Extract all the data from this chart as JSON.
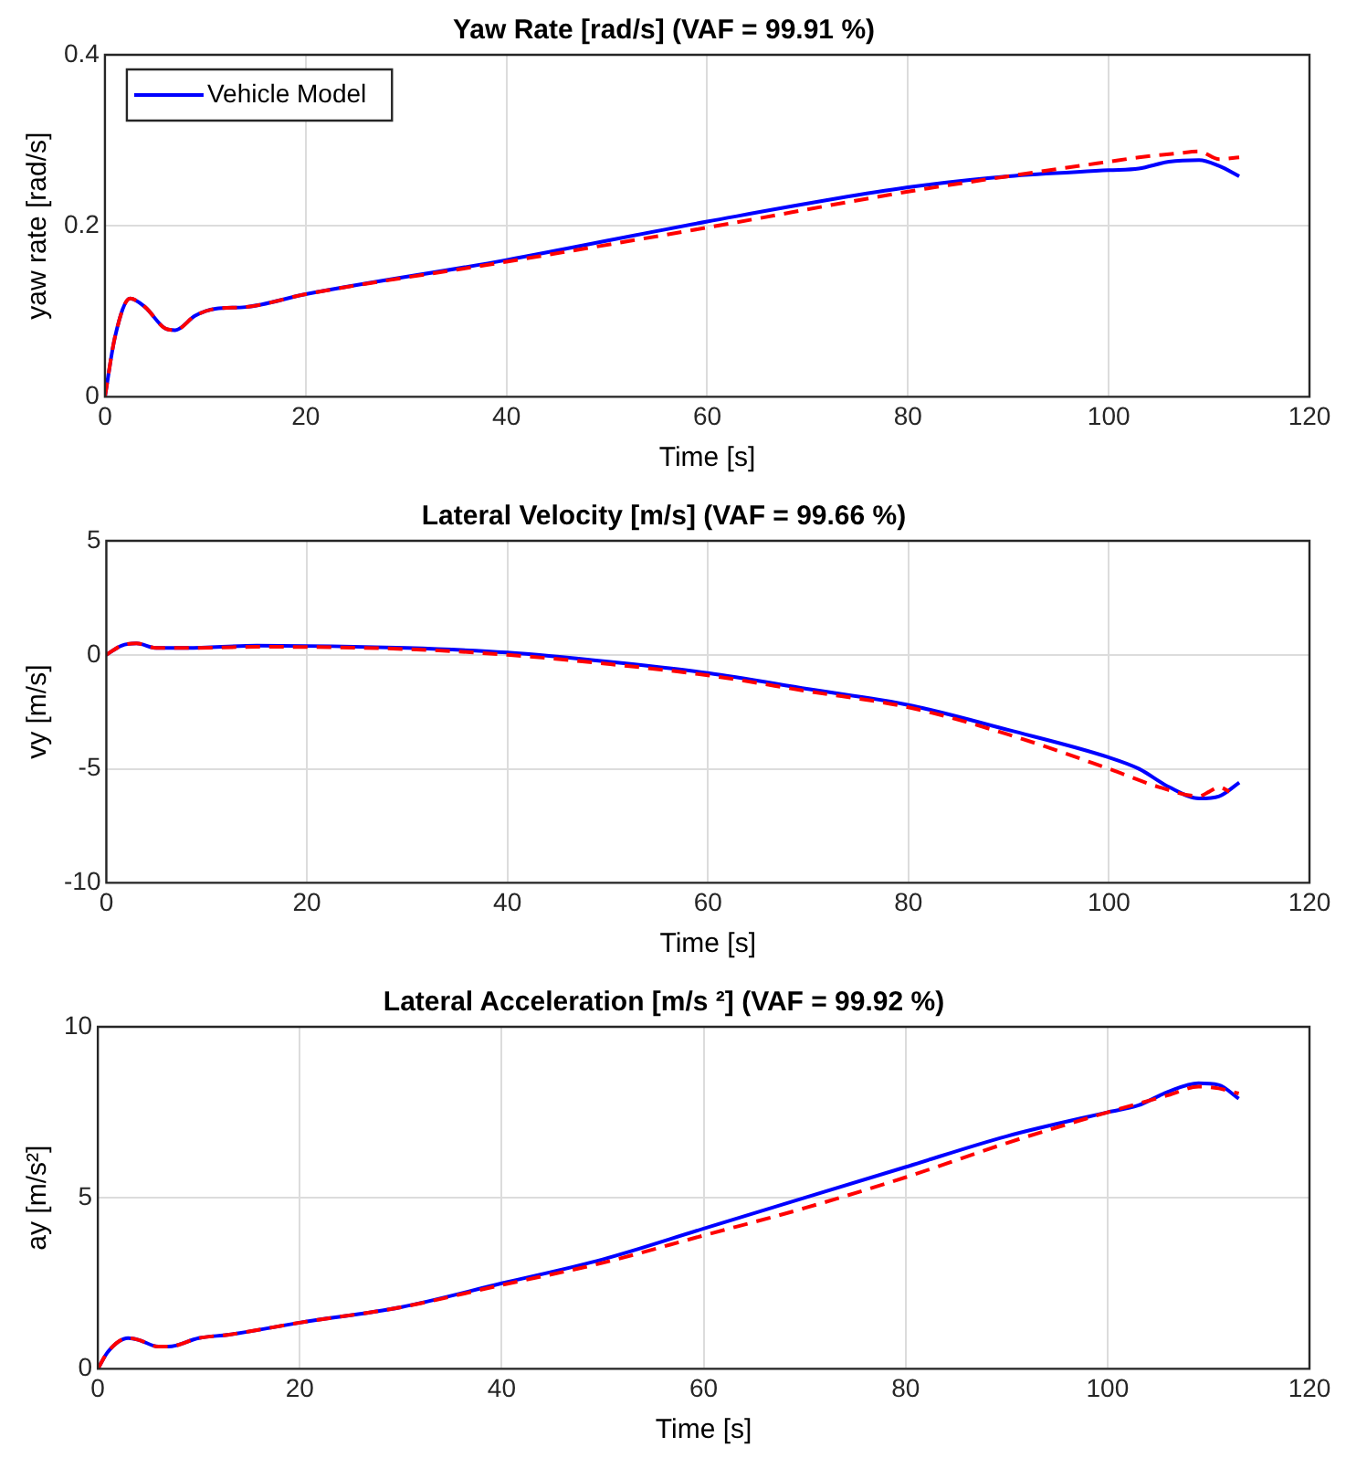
{
  "chart_data": [
    {
      "type": "line",
      "title": "Yaw Rate [rad/s] (VAF = 99.91 %)",
      "xlabel": "Time [s]",
      "ylabel": "yaw rate [rad/s]",
      "xlim": [
        0,
        120
      ],
      "xticks": [
        0,
        20,
        40,
        60,
        80,
        100,
        120
      ],
      "ylim": [
        0,
        0.4
      ],
      "yticks": [
        0,
        0.2,
        0.4
      ],
      "grid": true,
      "legend": "top left",
      "series": [
        {
          "name": "Vehicle Model",
          "color": "#0000ff",
          "line_style": "solid",
          "x": [
            0,
            1,
            2.5,
            4,
            6,
            7,
            9,
            11,
            14,
            20,
            40,
            60,
            80,
            90,
            100,
            103,
            106,
            109,
            111,
            113
          ],
          "values": [
            0,
            0.07,
            0.115,
            0.105,
            0.08,
            0.078,
            0.095,
            0.103,
            0.105,
            0.12,
            0.16,
            0.205,
            0.245,
            0.258,
            0.265,
            0.267,
            0.275,
            0.277,
            0.27,
            0.258
          ]
        },
        {
          "color": "#ff0000",
          "line_style": "dashed",
          "x": [
            0,
            1,
            2.5,
            4,
            6,
            7,
            9,
            11,
            14,
            20,
            40,
            60,
            80,
            90,
            100,
            103,
            107,
            109,
            111,
            113
          ],
          "values": [
            0,
            0.07,
            0.115,
            0.105,
            0.08,
            0.078,
            0.095,
            0.103,
            0.105,
            0.12,
            0.158,
            0.198,
            0.24,
            0.258,
            0.275,
            0.28,
            0.285,
            0.287,
            0.278,
            0.28
          ]
        }
      ]
    },
    {
      "type": "line",
      "title": "Lateral Velocity [m/s] (VAF = 99.66 %)",
      "xlabel": "Time [s]",
      "ylabel": "vy [m/s]",
      "xlim": [
        0,
        120
      ],
      "xticks": [
        0,
        20,
        40,
        60,
        80,
        100,
        120
      ],
      "ylim": [
        -10,
        5
      ],
      "yticks": [
        -10,
        -5,
        0,
        5
      ],
      "grid": true,
      "series": [
        {
          "color": "#0000ff",
          "line_style": "solid",
          "x": [
            0,
            1.5,
            3,
            5,
            8,
            15,
            30,
            40,
            50,
            60,
            70,
            80,
            90,
            100,
            103,
            106,
            109,
            111,
            113
          ],
          "values": [
            0,
            0.4,
            0.5,
            0.3,
            0.3,
            0.4,
            0.3,
            0.1,
            -0.3,
            -0.8,
            -1.5,
            -2.2,
            -3.3,
            -4.5,
            -5,
            -5.8,
            -6.3,
            -6.2,
            -5.6
          ]
        },
        {
          "color": "#ff0000",
          "line_style": "dashed",
          "x": [
            0,
            1.5,
            3,
            5,
            8,
            15,
            30,
            40,
            50,
            60,
            70,
            80,
            90,
            100,
            105,
            109,
            110,
            111,
            112
          ],
          "values": [
            0,
            0.4,
            0.5,
            0.3,
            0.3,
            0.35,
            0.25,
            0,
            -0.4,
            -0.9,
            -1.6,
            -2.3,
            -3.5,
            -5,
            -5.8,
            -6.2,
            -6,
            -5.8,
            -6
          ]
        }
      ]
    },
    {
      "type": "line",
      "title": "Lateral Acceleration [m/s ²] (VAF = 99.92 %)",
      "xlabel": "Time [s]",
      "ylabel": "ay [m/s²]",
      "xlim": [
        0,
        120
      ],
      "xticks": [
        0,
        20,
        40,
        60,
        80,
        100,
        120
      ],
      "ylim": [
        0,
        10
      ],
      "yticks": [
        0,
        5,
        10
      ],
      "grid": true,
      "series": [
        {
          "color": "#0000ff",
          "line_style": "solid",
          "x": [
            0,
            1,
            3,
            4,
            6,
            7,
            10,
            13,
            20,
            30,
            40,
            50,
            60,
            70,
            80,
            90,
            100,
            103,
            106,
            109,
            111,
            113
          ],
          "values": [
            0,
            0.5,
            0.9,
            0.85,
            0.65,
            0.65,
            0.9,
            1,
            1.35,
            1.8,
            2.5,
            3.2,
            4.1,
            5,
            5.9,
            6.8,
            7.5,
            7.7,
            8.1,
            8.35,
            8.3,
            7.9
          ]
        },
        {
          "color": "#ff0000",
          "line_style": "dashed",
          "x": [
            0,
            1,
            3,
            4,
            6,
            7,
            10,
            13,
            20,
            30,
            40,
            50,
            60,
            70,
            80,
            90,
            100,
            106,
            109,
            111,
            113
          ],
          "values": [
            0,
            0.5,
            0.9,
            0.85,
            0.65,
            0.65,
            0.9,
            1,
            1.35,
            1.8,
            2.45,
            3.1,
            3.9,
            4.7,
            5.6,
            6.6,
            7.5,
            8,
            8.25,
            8.2,
            8.05
          ]
        }
      ]
    }
  ]
}
